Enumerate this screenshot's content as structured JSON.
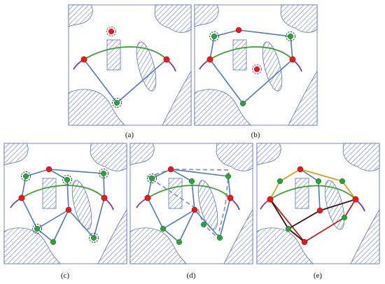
{
  "panels": [
    {
      "id": "a",
      "caption": "(a)"
    },
    {
      "id": "b",
      "caption": "(b)"
    },
    {
      "id": "c",
      "caption": "(c)"
    },
    {
      "id": "d",
      "caption": "(d)"
    },
    {
      "id": "e",
      "caption": "(e)"
    }
  ],
  "colors": {
    "frame": "#8a9fd0",
    "obstacle_hatch": "#5d74b4",
    "edge": "#4e79c2",
    "curve": "#38a02c",
    "curve_end": "#7b3b9c",
    "node_red": "#e81a1a",
    "node_green": "#2aa43a",
    "hull_dashed": "#8d9aa6",
    "path_gold": "#d8a01c",
    "path_dark": "#3a1212"
  }
}
